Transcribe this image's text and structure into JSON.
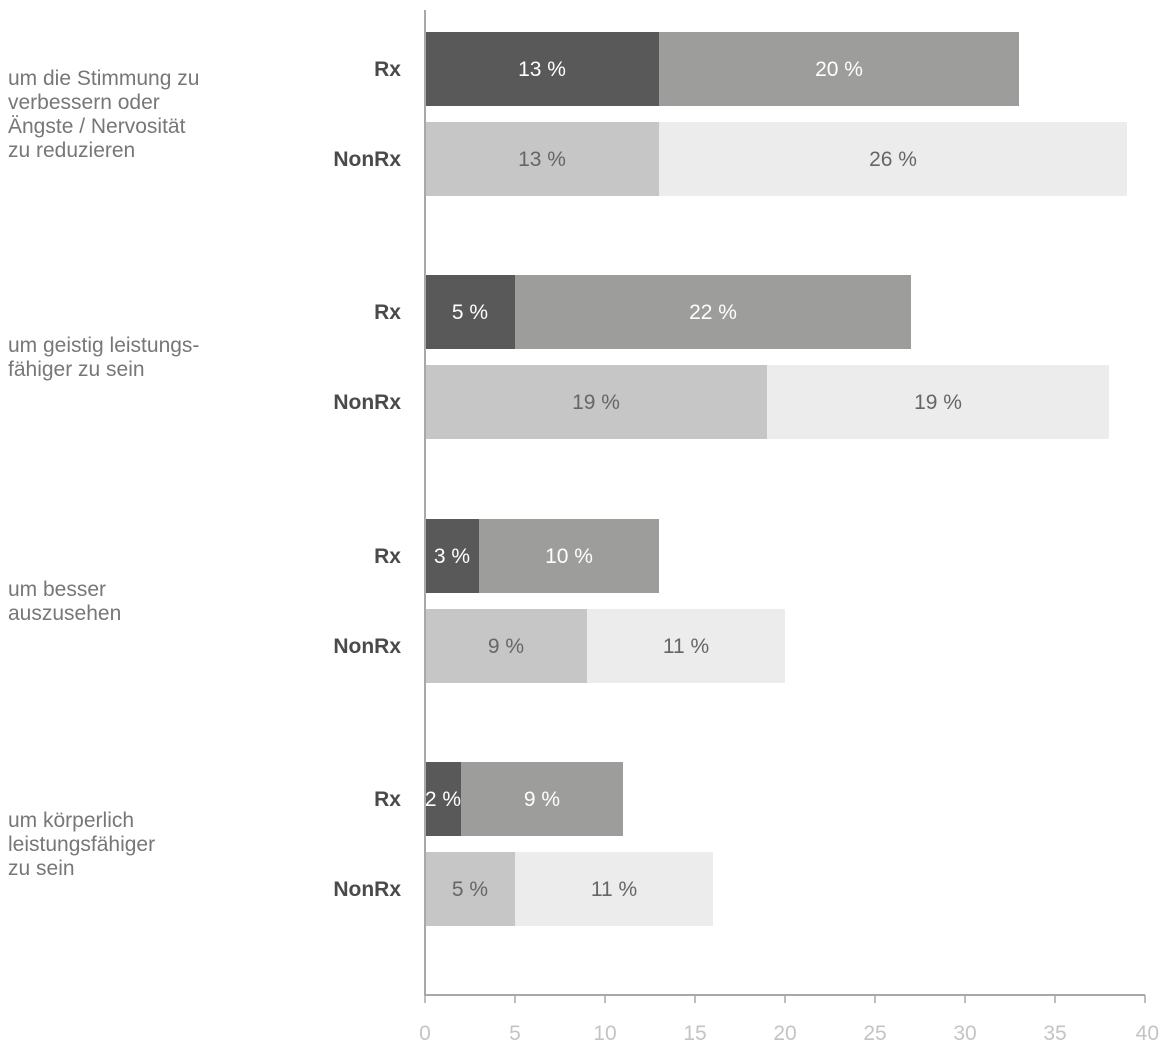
{
  "colors": {
    "rx_primary": "#595959",
    "rx_secondary": "#9d9d9b",
    "nonrx_primary": "#c6c6c6",
    "nonrx_secondary": "#ececec",
    "axis": "#a8a8a8",
    "label_on_dark": "#ffffff",
    "label_on_light": "#666666",
    "group_label": "#777777",
    "series_label": "#4a4a4a",
    "tick_label": "#c4c4c4"
  },
  "chart_data": {
    "type": "bar",
    "orientation": "horizontal",
    "stacked": true,
    "title": "",
    "xlabel": "",
    "ylabel": "",
    "xlim": [
      0,
      40
    ],
    "xticks": [
      0,
      5,
      10,
      15,
      20,
      25,
      30,
      35,
      40
    ],
    "xtick_labels": [
      "0",
      "5",
      "10",
      "15",
      "20",
      "25",
      "30",
      "35",
      "40"
    ],
    "grid": false,
    "legend": "none",
    "unit_suffix": " %",
    "groups": [
      {
        "label_lines": [
          "um die Stimmung zu",
          "verbessern oder",
          "Ängste / Nervosität",
          "zu reduzieren"
        ],
        "bars": [
          {
            "series": "Rx",
            "segments": [
              13,
              20
            ],
            "segment_labels": [
              "13 %",
              "20 %"
            ]
          },
          {
            "series": "NonRx",
            "segments": [
              13,
              26
            ],
            "segment_labels": [
              "13 %",
              "26 %"
            ]
          }
        ]
      },
      {
        "label_lines": [
          "um geistig leistungs-",
          "fähiger zu sein"
        ],
        "bars": [
          {
            "series": "Rx",
            "segments": [
              5,
              22
            ],
            "segment_labels": [
              "5 %",
              "22 %"
            ]
          },
          {
            "series": "NonRx",
            "segments": [
              19,
              19
            ],
            "segment_labels": [
              "19 %",
              "19 %"
            ]
          }
        ]
      },
      {
        "label_lines": [
          "um besser",
          "auszusehen"
        ],
        "bars": [
          {
            "series": "Rx",
            "segments": [
              3,
              10
            ],
            "segment_labels": [
              "3 %",
              "10 %"
            ]
          },
          {
            "series": "NonRx",
            "segments": [
              9,
              11
            ],
            "segment_labels": [
              "9 %",
              "11 %"
            ]
          }
        ]
      },
      {
        "label_lines": [
          "um körperlich",
          "leistungsfähiger",
          "zu sein"
        ],
        "bars": [
          {
            "series": "Rx",
            "segments": [
              2,
              9
            ],
            "segment_labels": [
              "2 %",
              "9 %"
            ]
          },
          {
            "series": "NonRx",
            "segments": [
              5,
              11
            ],
            "segment_labels": [
              "5 %",
              "11 %"
            ]
          }
        ]
      }
    ]
  }
}
